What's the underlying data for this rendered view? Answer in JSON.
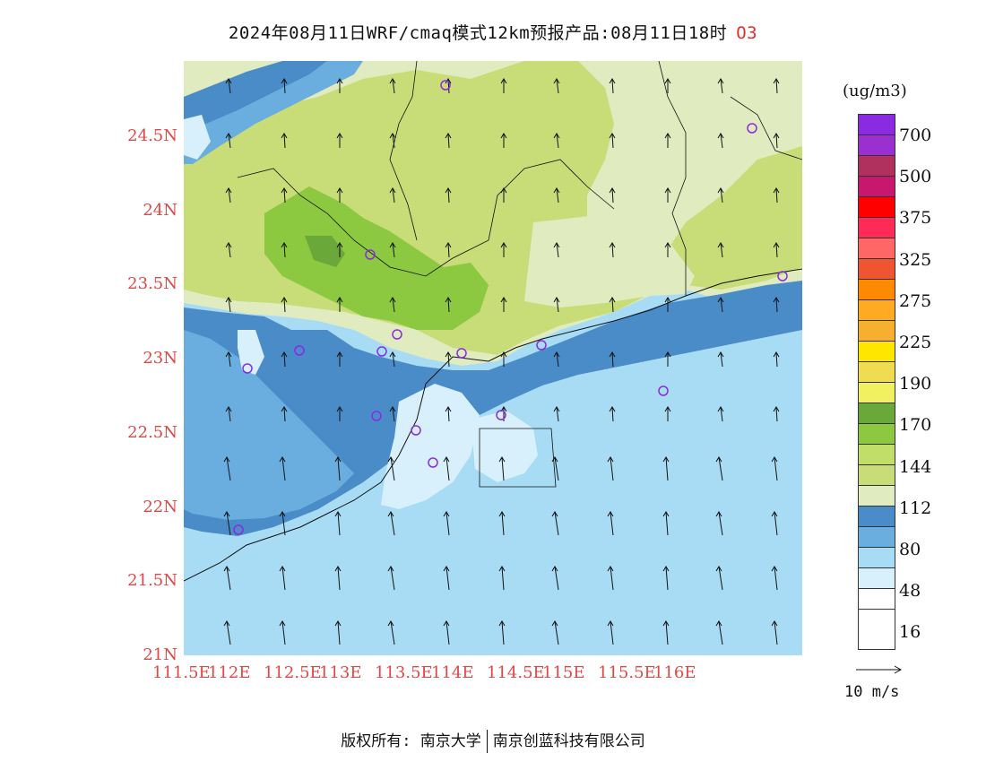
{
  "title": {
    "main": "2024年08月11日WRF/cmaq模式12km预报产品:08月11日18时",
    "species": "O3"
  },
  "axes": {
    "y_ticks": [
      "24.5N",
      "24N",
      "23.5N",
      "23N",
      "22.5N",
      "22N",
      "21.5N",
      "21N"
    ],
    "x_ticks": [
      "111.5E",
      "112E",
      "112.5E",
      "113E",
      "113.5E",
      "114E",
      "114.5E",
      "115E",
      "115.5E",
      "116E"
    ]
  },
  "legend": {
    "unit": "(ug/m3)",
    "labels": [
      "700",
      "500",
      "375",
      "325",
      "275",
      "225",
      "190",
      "170",
      "144",
      "112",
      "80",
      "48",
      "16"
    ],
    "colors": [
      "#8a2be2",
      "#9b30d0",
      "#b0305e",
      "#c8186e",
      "#ff0000",
      "#ff2a55",
      "#ff6666",
      "#ee5530",
      "#ff8a00",
      "#ffaa22",
      "#f6b030",
      "#ffe600",
      "#f0dc50",
      "#f0f060",
      "#6aa83a",
      "#8cc840",
      "#c0de68",
      "#c8dc78",
      "#e0ebc0",
      "#4a8cc8",
      "#6aaee0",
      "#a8dcf4",
      "#d8f0fc",
      "#ffffff"
    ]
  },
  "vector_reference": {
    "label": "10 m/s"
  },
  "footer": {
    "left": "版权所有: 南京大学",
    "right": "南京创蓝科技有限公司"
  },
  "colors": {
    "tick_label": "#e24646",
    "species": "#e0302a",
    "station_marker": "#8a2be2"
  }
}
